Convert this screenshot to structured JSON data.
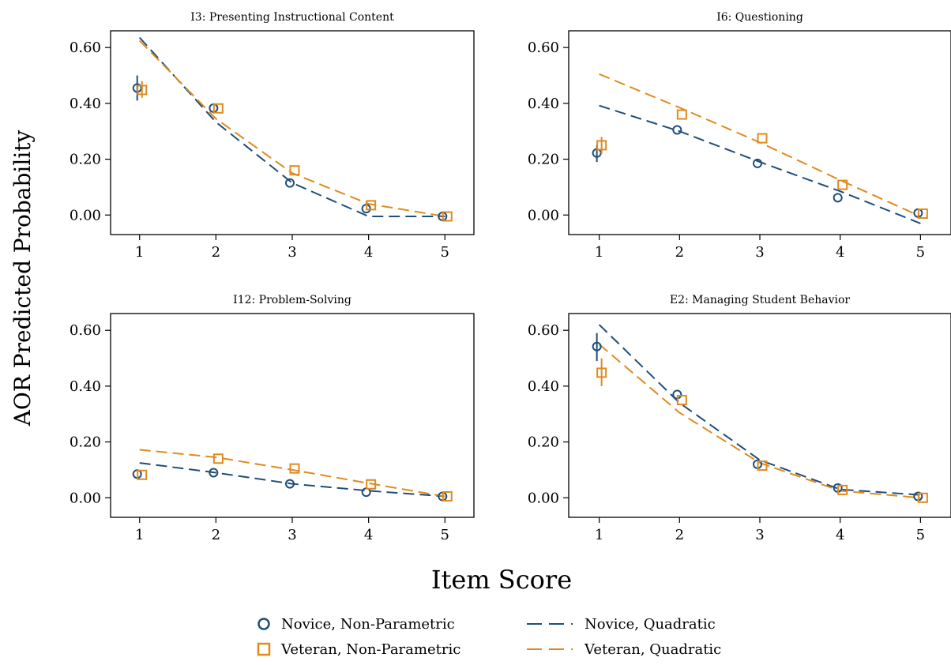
{
  "figure": {
    "ylabel": "AOR Predicted Probability",
    "xlabel": "Item Score",
    "legend": [
      {
        "label": "Novice, Non-Parametric",
        "marker": "circle",
        "color": "#1f4e79"
      },
      {
        "label": "Veteran, Non-Parametric",
        "marker": "square",
        "color": "#e08a1e"
      },
      {
        "label": "Novice, Quadratic",
        "marker": "dash",
        "color": "#1f4e79"
      },
      {
        "label": "Veteran, Quadratic",
        "marker": "dash",
        "color": "#e08a1e"
      }
    ],
    "colors": {
      "novice": "#1f4e79",
      "veteran": "#e08a1e"
    }
  },
  "chart_data": [
    {
      "type": "line",
      "title": "I3: Presenting Instructional Content",
      "x": [
        1,
        2,
        3,
        4,
        5
      ],
      "xticks": [
        "1",
        "2",
        "3",
        "4",
        "5"
      ],
      "ylim": [
        -0.07,
        0.66
      ],
      "yticks": [
        "0.00",
        "0.20",
        "0.40",
        "0.60"
      ],
      "ytick_values": [
        0,
        0.2,
        0.4,
        0.6
      ],
      "nonparametric": [
        {
          "name": "Novice, Non-Parametric",
          "values": [
            0.455,
            0.383,
            0.115,
            0.023,
            -0.005
          ],
          "ci": [
            [
              0.41,
              0.5
            ],
            null,
            null,
            null,
            null
          ]
        },
        {
          "name": "Veteran, Non-Parametric",
          "values": [
            0.448,
            0.382,
            0.16,
            0.035,
            -0.005
          ],
          "ci": [
            [
              0.42,
              0.48
            ],
            null,
            null,
            null,
            null
          ]
        }
      ],
      "quadratic": [
        {
          "name": "Novice, Quadratic",
          "values": [
            0.636,
            0.333,
            0.115,
            -0.005,
            -0.005
          ]
        },
        {
          "name": "Veteran, Quadratic",
          "values": [
            0.625,
            0.345,
            0.15,
            0.04,
            -0.005
          ]
        }
      ]
    },
    {
      "type": "line",
      "title": "I6: Questioning",
      "x": [
        1,
        2,
        3,
        4,
        5
      ],
      "xticks": [
        "1",
        "2",
        "3",
        "4",
        "5"
      ],
      "ylim": [
        -0.07,
        0.66
      ],
      "yticks": [
        "0.00",
        "0.20",
        "0.40",
        "0.60"
      ],
      "ytick_values": [
        0,
        0.2,
        0.4,
        0.6
      ],
      "nonparametric": [
        {
          "name": "Novice, Non-Parametric",
          "values": [
            0.222,
            0.305,
            0.185,
            0.062,
            0.007
          ],
          "ci": [
            [
              0.19,
              0.25
            ],
            null,
            null,
            null,
            null
          ]
        },
        {
          "name": "Veteran, Non-Parametric",
          "values": [
            0.25,
            0.36,
            0.275,
            0.108,
            0.005
          ],
          "ci": [
            [
              0.22,
              0.28
            ],
            null,
            null,
            null,
            null
          ]
        }
      ],
      "quadratic": [
        {
          "name": "Novice, Quadratic",
          "values": [
            0.392,
            0.3,
            0.19,
            0.085,
            -0.03
          ]
        },
        {
          "name": "Veteran, Quadratic",
          "values": [
            0.505,
            0.385,
            0.26,
            0.125,
            -0.005
          ]
        }
      ]
    },
    {
      "type": "line",
      "title": "I12: Problem-Solving",
      "x": [
        1,
        2,
        3,
        4,
        5
      ],
      "xticks": [
        "1",
        "2",
        "3",
        "4",
        "5"
      ],
      "ylim": [
        -0.07,
        0.66
      ],
      "yticks": [
        "0.00",
        "0.20",
        "0.40",
        "0.60"
      ],
      "ytick_values": [
        0,
        0.2,
        0.4,
        0.6
      ],
      "nonparametric": [
        {
          "name": "Novice, Non-Parametric",
          "values": [
            0.085,
            0.09,
            0.05,
            0.02,
            0.005
          ],
          "ci": [
            null,
            null,
            null,
            null,
            null
          ]
        },
        {
          "name": "Veteran, Non-Parametric",
          "values": [
            0.082,
            0.14,
            0.105,
            0.048,
            0.005
          ],
          "ci": [
            null,
            null,
            null,
            null,
            null
          ]
        }
      ],
      "quadratic": [
        {
          "name": "Novice, Quadratic",
          "values": [
            0.125,
            0.09,
            0.05,
            0.025,
            0.005
          ]
        },
        {
          "name": "Veteran, Quadratic",
          "values": [
            0.172,
            0.145,
            0.1,
            0.052,
            0.005
          ]
        }
      ]
    },
    {
      "type": "line",
      "title": "E2: Managing Student Behavior",
      "x": [
        1,
        2,
        3,
        4,
        5
      ],
      "xticks": [
        "1",
        "2",
        "3",
        "4",
        "5"
      ],
      "ylim": [
        -0.07,
        0.66
      ],
      "yticks": [
        "0.00",
        "0.20",
        "0.40",
        "0.60"
      ],
      "ytick_values": [
        0,
        0.2,
        0.4,
        0.6
      ],
      "nonparametric": [
        {
          "name": "Novice, Non-Parametric",
          "values": [
            0.542,
            0.37,
            0.12,
            0.035,
            0.005
          ],
          "ci": [
            [
              0.49,
              0.59
            ],
            null,
            null,
            null,
            null
          ]
        },
        {
          "name": "Veteran, Non-Parametric",
          "values": [
            0.448,
            0.35,
            0.115,
            0.028,
            0.0
          ],
          "ci": [
            [
              0.4,
              0.5
            ],
            null,
            null,
            null,
            null
          ]
        }
      ],
      "quadratic": [
        {
          "name": "Novice, Quadratic",
          "values": [
            0.62,
            0.34,
            0.135,
            0.03,
            0.01
          ]
        },
        {
          "name": "Veteran, Quadratic",
          "values": [
            0.55,
            0.305,
            0.125,
            0.025,
            0.0
          ]
        }
      ]
    }
  ]
}
